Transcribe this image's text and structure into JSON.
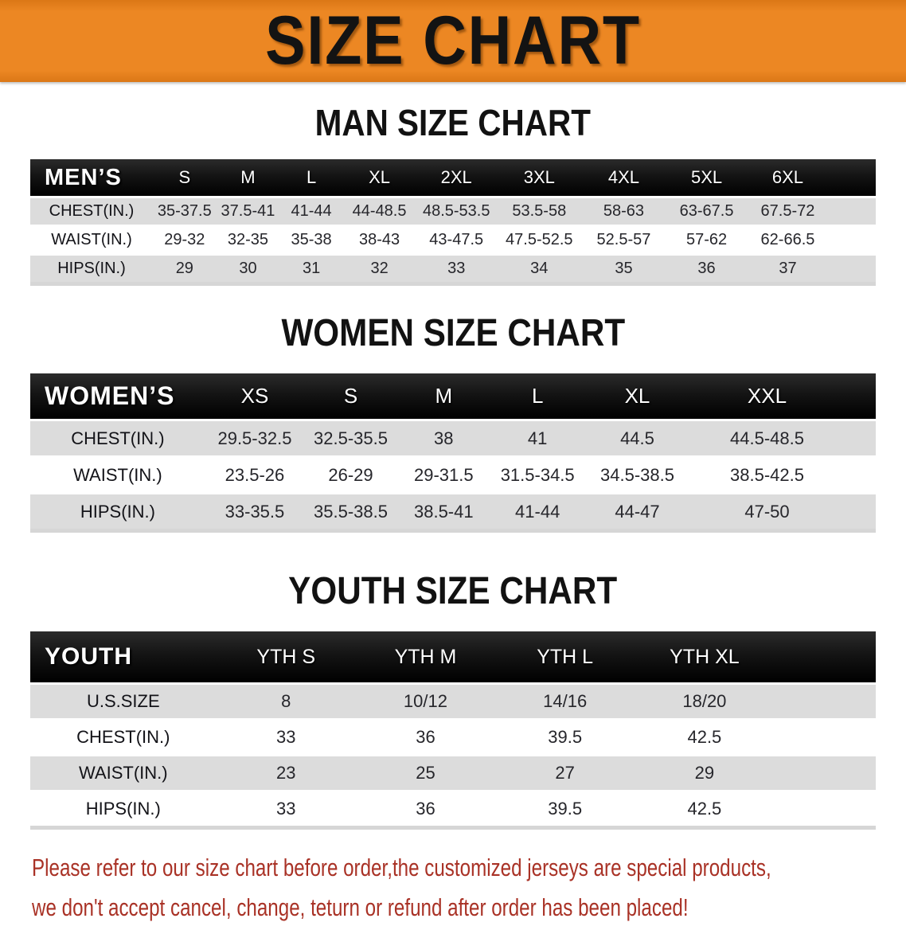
{
  "banner": {
    "title": "SIZE CHART"
  },
  "colors": {
    "banner_orange": "#ec8723",
    "banner_orange_dark": "#db7716",
    "band_black": "#141414",
    "row_gray": "#dcdcdc",
    "footer_red": "#a93226"
  },
  "men": {
    "heading": "MAN SIZE CHART",
    "corner_label": "MEN’S",
    "columns": [
      "S",
      "M",
      "L",
      "XL",
      "2XL",
      "3XL",
      "4XL",
      "5XL",
      "6XL"
    ],
    "rows": [
      {
        "label": "CHEST(IN.)",
        "values": [
          "35-37.5",
          "37.5-41",
          "41-44",
          "44-48.5",
          "48.5-53.5",
          "53.5-58",
          "58-63",
          "63-67.5",
          "67.5-72"
        ]
      },
      {
        "label": "WAIST(IN.)",
        "values": [
          "29-32",
          "32-35",
          "35-38",
          "38-43",
          "43-47.5",
          "47.5-52.5",
          "52.5-57",
          "57-62",
          "62-66.5"
        ]
      },
      {
        "label": "HIPS(IN.)",
        "values": [
          "29",
          "30",
          "31",
          "32",
          "33",
          "34",
          "35",
          "36",
          "37"
        ]
      }
    ]
  },
  "women": {
    "heading": "WOMEN SIZE CHART",
    "corner_label": "WOMEN’S",
    "columns": [
      "XS",
      "S",
      "M",
      "L",
      "XL",
      "XXL"
    ],
    "rows": [
      {
        "label": "CHEST(IN.)",
        "values": [
          "29.5-32.5",
          "32.5-35.5",
          "38",
          "41",
          "44.5",
          "44.5-48.5"
        ]
      },
      {
        "label": "WAIST(IN.)",
        "values": [
          "23.5-26",
          "26-29",
          "29-31.5",
          "31.5-34.5",
          "34.5-38.5",
          "38.5-42.5"
        ]
      },
      {
        "label": "HIPS(IN.)",
        "values": [
          "33-35.5",
          "35.5-38.5",
          "38.5-41",
          "41-44",
          "44-47",
          "47-50"
        ]
      }
    ]
  },
  "youth": {
    "heading": "YOUTH SIZE CHART",
    "corner_label": "YOUTH",
    "columns": [
      "YTH S",
      "YTH M",
      "YTH L",
      "YTH XL"
    ],
    "rows": [
      {
        "label": "U.S.SIZE",
        "values": [
          "8",
          "10/12",
          "14/16",
          "18/20"
        ]
      },
      {
        "label": "CHEST(IN.)",
        "values": [
          "33",
          "36",
          "39.5",
          "42.5"
        ]
      },
      {
        "label": "WAIST(IN.)",
        "values": [
          "23",
          "25",
          "27",
          "29"
        ]
      },
      {
        "label": "HIPS(IN.)",
        "values": [
          "33",
          "36",
          "39.5",
          "42.5"
        ]
      }
    ]
  },
  "footer": {
    "lines": [
      "Please refer to our size chart before order,the customized jerseys are special products,",
      "we don't accept cancel, change, teturn or refund after order has been placed!"
    ]
  }
}
